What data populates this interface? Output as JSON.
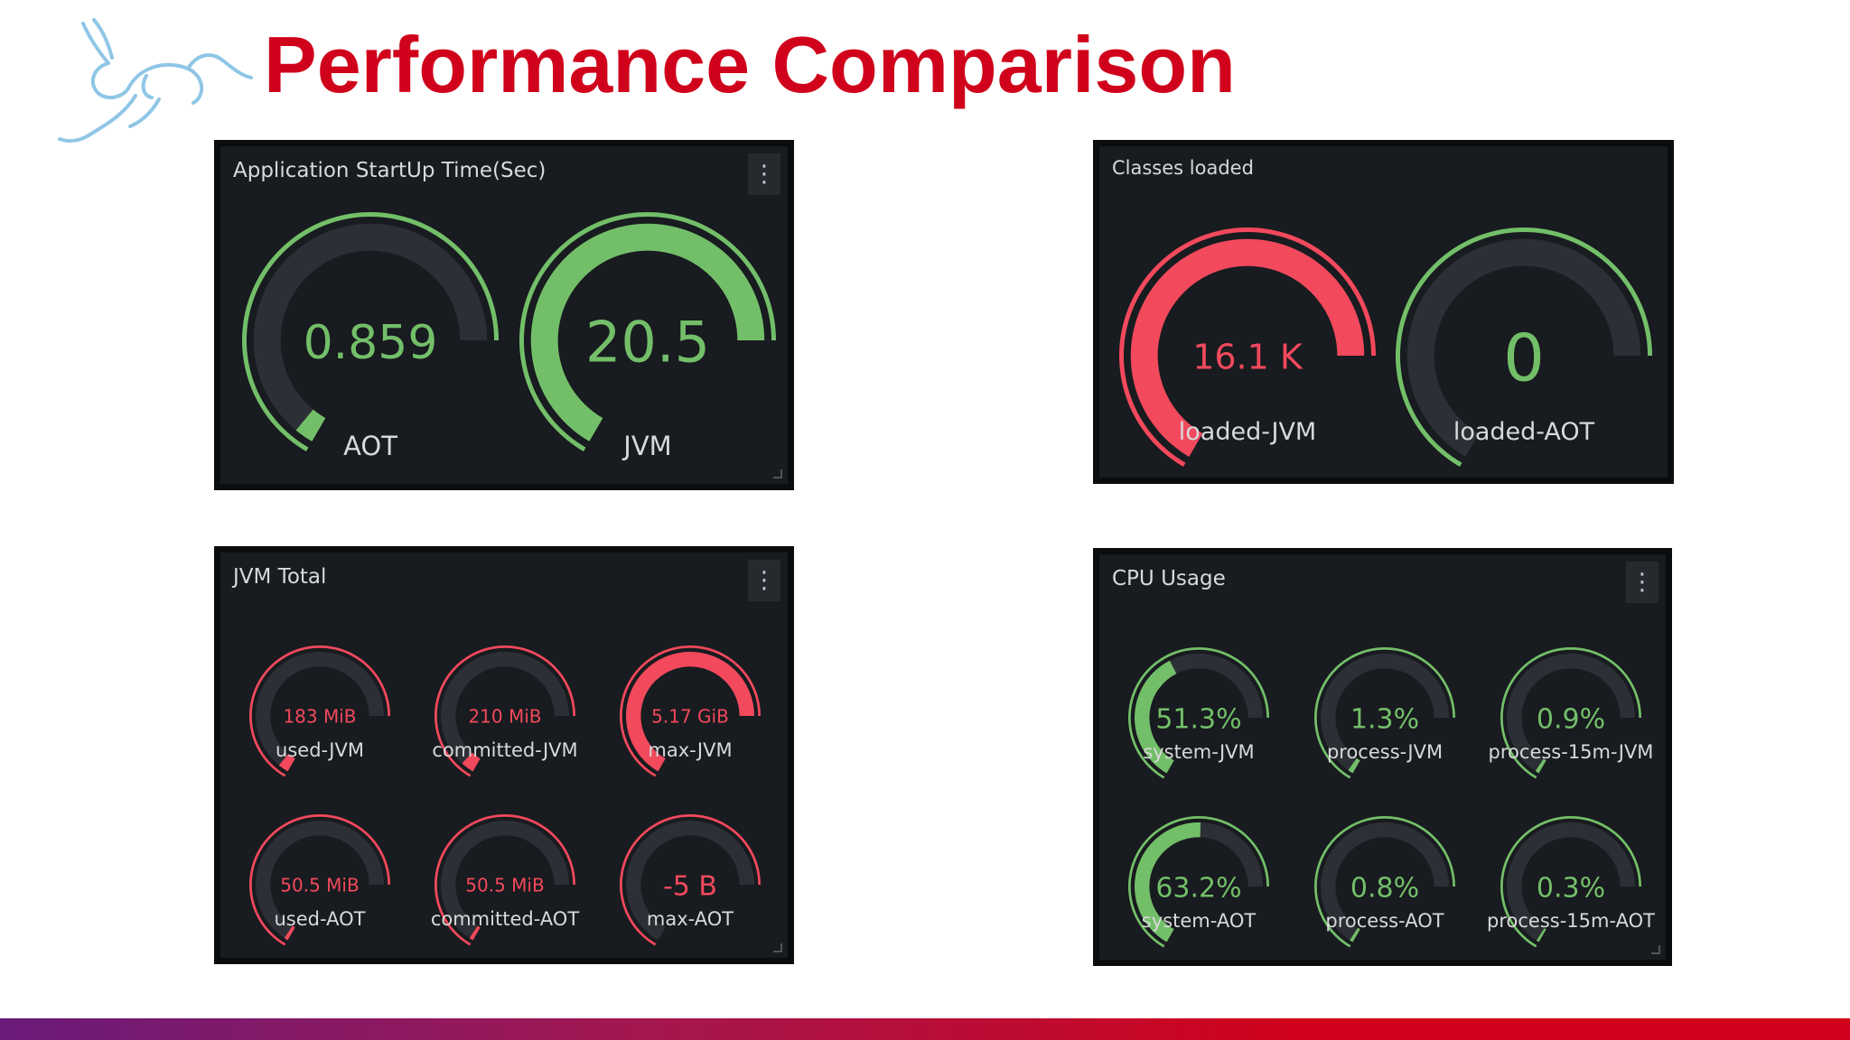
{
  "slide": {
    "title": "Performance Comparison"
  },
  "colors": {
    "title": "#d0021b",
    "panel_bg": "#181b1f",
    "green": "#73bf69",
    "red": "#f2495c",
    "track": "#2c2f35"
  },
  "panels": [
    {
      "id": "startup",
      "title": "Application StartUp Time(Sec)",
      "has_menu": true,
      "gauges": [
        {
          "label": "AOT",
          "value": "0.859",
          "fraction": 0.04,
          "color": "green"
        },
        {
          "label": "JVM",
          "value": "20.5",
          "fraction": 1.0,
          "color": "green"
        }
      ]
    },
    {
      "id": "classes",
      "title": "Classes loaded",
      "has_menu": false,
      "gauges": [
        {
          "label": "loaded-JVM",
          "value": "16.1 K",
          "fraction": 1.0,
          "color": "red"
        },
        {
          "label": "loaded-AOT",
          "value": "0",
          "fraction": 0.0,
          "color": "green"
        }
      ]
    },
    {
      "id": "jvm-total",
      "title": "JVM Total",
      "has_menu": true,
      "gauges": [
        {
          "label": "used-JVM",
          "value": "183 MiB",
          "fraction": 0.04,
          "color": "red"
        },
        {
          "label": "committed-JVM",
          "value": "210 MiB",
          "fraction": 0.05,
          "color": "red"
        },
        {
          "label": "max-JVM",
          "value": "5.17 GiB",
          "fraction": 1.0,
          "color": "red"
        },
        {
          "label": "used-AOT",
          "value": "50.5 MiB",
          "fraction": 0.015,
          "color": "red"
        },
        {
          "label": "committed-AOT",
          "value": "50.5 MiB",
          "fraction": 0.015,
          "color": "red"
        },
        {
          "label": "max-AOT",
          "value": "-5 B",
          "fraction": 0.0,
          "color": "red"
        }
      ]
    },
    {
      "id": "cpu",
      "title": "CPU Usage",
      "has_menu": true,
      "gauges": [
        {
          "label": "system-JVM",
          "value": "51.3%",
          "fraction": 0.513,
          "color": "green"
        },
        {
          "label": "process-JVM",
          "value": "1.3%",
          "fraction": 0.02,
          "color": "green"
        },
        {
          "label": "process-15m-JVM",
          "value": "0.9%",
          "fraction": 0.015,
          "color": "green"
        },
        {
          "label": "system-AOT",
          "value": "63.2%",
          "fraction": 0.632,
          "color": "green"
        },
        {
          "label": "process-AOT",
          "value": "0.8%",
          "fraction": 0.013,
          "color": "green"
        },
        {
          "label": "process-15m-AOT",
          "value": "0.3%",
          "fraction": 0.01,
          "color": "green"
        }
      ]
    }
  ]
}
